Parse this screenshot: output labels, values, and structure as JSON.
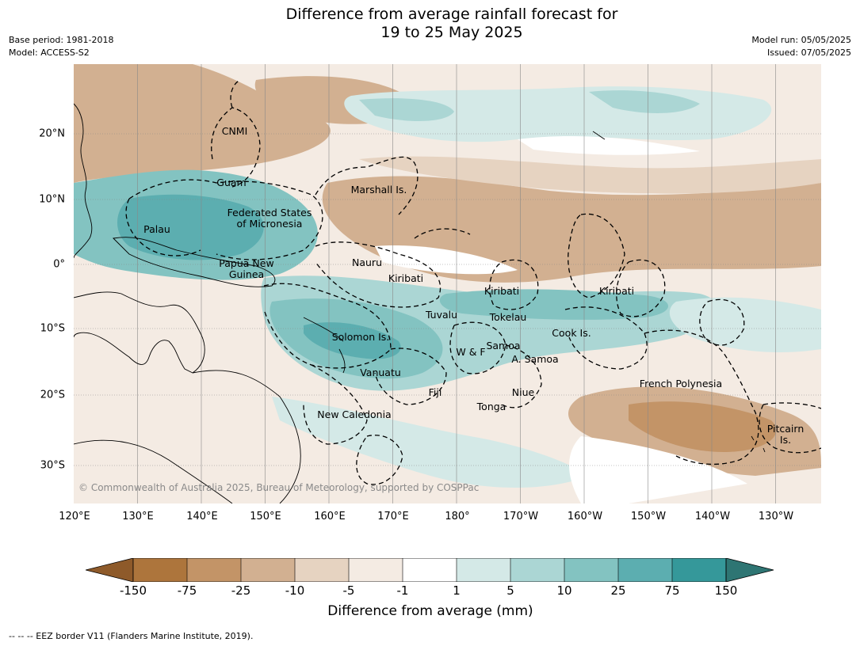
{
  "header": {
    "title_line1": "Difference from average rainfall forecast for",
    "title_line2": "19 to 25 May 2025",
    "base_period": "Base period: 1981-2018",
    "model": "Model: ACCESS-S2",
    "model_run": "Model run: 05/05/2025",
    "issued": "Issued: 07/05/2025"
  },
  "axes": {
    "lat_labels": [
      "20°N",
      "10°N",
      "0°",
      "10°S",
      "20°S",
      "30°S"
    ],
    "lon_labels": [
      "120°E",
      "130°E",
      "140°E",
      "150°E",
      "160°E",
      "170°E",
      "180°",
      "170°W",
      "160°W",
      "150°W",
      "140°W",
      "130°W"
    ]
  },
  "regions": [
    {
      "name": "CNMI"
    },
    {
      "name": "Guam"
    },
    {
      "name": "Marshall Is."
    },
    {
      "name": "Federated States\nof Micronesia"
    },
    {
      "name": "Palau"
    },
    {
      "name": "Nauru"
    },
    {
      "name": "Papua New\nGuinea"
    },
    {
      "name": "Kiribati"
    },
    {
      "name": "Kiribati"
    },
    {
      "name": "Kiribati"
    },
    {
      "name": "Tuvalu"
    },
    {
      "name": "Tokelau"
    },
    {
      "name": "Cook Is."
    },
    {
      "name": "Solomon Is."
    },
    {
      "name": "Samoa"
    },
    {
      "name": "W & F"
    },
    {
      "name": "A. Samoa"
    },
    {
      "name": "Vanuatu"
    },
    {
      "name": "Fiji"
    },
    {
      "name": "Niue"
    },
    {
      "name": "Tonga"
    },
    {
      "name": "French Polynesia"
    },
    {
      "name": "New Caledonia"
    },
    {
      "name": "Pitcairn\nIs."
    }
  ],
  "copyright": "© Commonwealth of Australia 2025, Bureau of Meteorology, supported by COSPPac",
  "colorbar": {
    "title": "Difference from average (mm)",
    "ticks": [
      "-150",
      "-75",
      "-25",
      "-10",
      "-5",
      "-1",
      "1",
      "5",
      "10",
      "25",
      "75",
      "150"
    ],
    "colors": {
      "lt_neg150": "#8e5a2a",
      "neg150_neg75": "#ad753c",
      "neg75_neg25": "#c39467",
      "neg25_neg10": "#d2b091",
      "neg10_neg5": "#e6d3c1",
      "neg5_neg1": "#f4ebe3",
      "neg1_1": "#ffffff",
      "1_5": "#d4e9e7",
      "5_10": "#abd6d4",
      "10_25": "#83c3c1",
      "25_75": "#5caeb0",
      "75_150": "#35989a",
      "gt_150": "#2e7573"
    }
  },
  "footnote": "-- -- -- EEZ border V11 (Flanders Marine Institute, 2019)."
}
